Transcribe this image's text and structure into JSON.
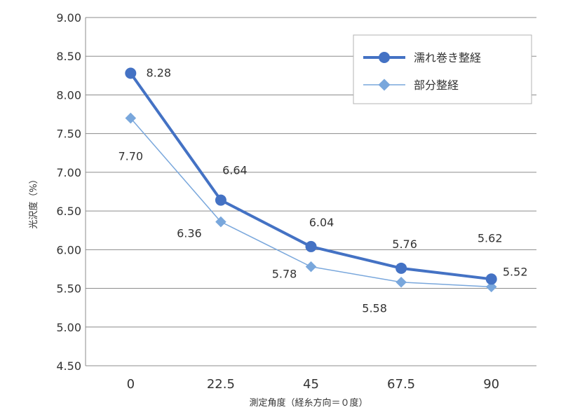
{
  "chart_data": {
    "type": "line",
    "categories": [
      "0",
      "22.5",
      "45",
      "67.5",
      "90"
    ],
    "series": [
      {
        "name": "濡れ巻き整経",
        "values": [
          8.28,
          6.64,
          6.04,
          5.76,
          5.62
        ],
        "color": "#4472c4"
      },
      {
        "name": "部分整経",
        "values": [
          7.7,
          6.36,
          5.78,
          5.58,
          5.52
        ],
        "color": "#79a7dc"
      }
    ],
    "xlabel": "測定角度（経糸方向＝０度）",
    "ylabel": "光沢度（%）",
    "ylim": [
      4.5,
      9.0
    ],
    "yticks": [
      "4.50",
      "5.00",
      "5.50",
      "6.00",
      "6.50",
      "7.00",
      "7.50",
      "8.00",
      "8.50",
      "9.00"
    ],
    "data_labels": [
      [
        "8.28",
        "6.64",
        "6.04",
        "5.76",
        "5.62"
      ],
      [
        "7.70",
        "6.36",
        "5.78",
        "5.58",
        "5.52"
      ]
    ],
    "grid": true,
    "legend": "top-right"
  }
}
